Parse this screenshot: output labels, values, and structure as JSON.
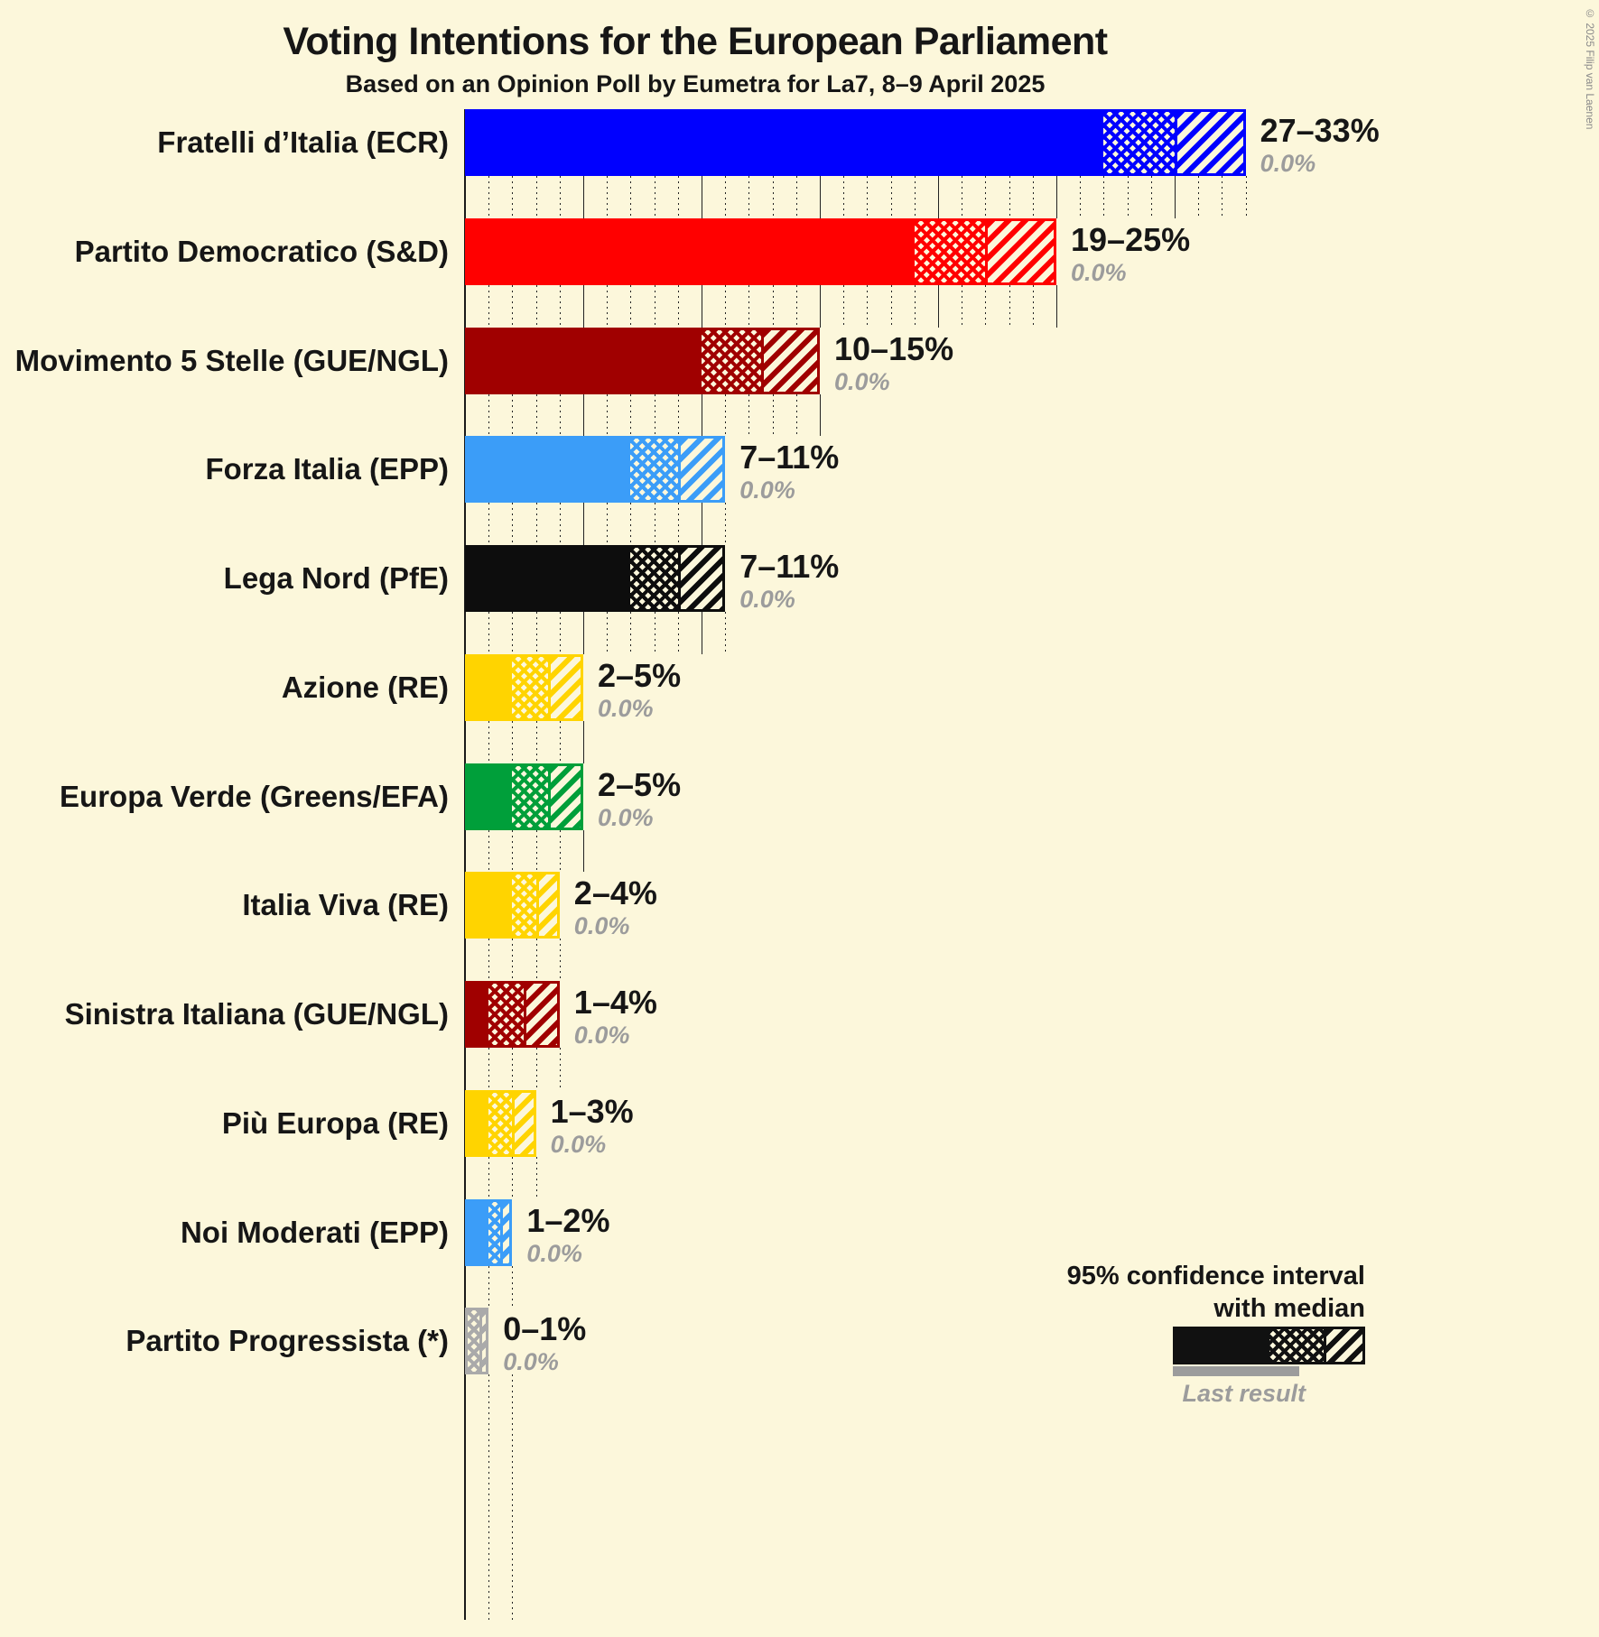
{
  "title": "Voting Intentions for the European Parliament",
  "subtitle": "Based on an Opinion Poll by Eumetra for La7, 8–9 April 2025",
  "copyright": "© 2025 Filip van Laenen",
  "legend": {
    "ci_line1": "95% confidence interval",
    "ci_line2": "with median",
    "last_result": "Last result"
  },
  "chart_data": {
    "type": "bar",
    "orientation": "horizontal",
    "unit": "%",
    "x_axis": {
      "min": 0,
      "max": 33,
      "minor_tick_step": 1,
      "major_tick_step": 5,
      "gridlines": "dotted-minor-solid-major"
    },
    "bars": [
      {
        "party": "Fratelli d’Italia (ECR)",
        "low": 27,
        "median": 30,
        "high": 33,
        "range_label": "27–33%",
        "last_result": "0.0%",
        "color": "#0000FF"
      },
      {
        "party": "Partito Democratico (S&D)",
        "low": 19,
        "median": 22,
        "high": 25,
        "range_label": "19–25%",
        "last_result": "0.0%",
        "color": "#FF0000"
      },
      {
        "party": "Movimento 5 Stelle (GUE/NGL)",
        "low": 10,
        "median": 12.5,
        "high": 15,
        "range_label": "10–15%",
        "last_result": "0.0%",
        "color": "#A00000"
      },
      {
        "party": "Forza Italia (EPP)",
        "low": 7,
        "median": 9,
        "high": 11,
        "range_label": "7–11%",
        "last_result": "0.0%",
        "color": "#3B9DF8"
      },
      {
        "party": "Lega Nord (PfE)",
        "low": 7,
        "median": 9,
        "high": 11,
        "range_label": "7–11%",
        "last_result": "0.0%",
        "color": "#0D0D0D"
      },
      {
        "party": "Azione (RE)",
        "low": 2,
        "median": 3.5,
        "high": 5,
        "range_label": "2–5%",
        "last_result": "0.0%",
        "color": "#FFD400"
      },
      {
        "party": "Europa Verde (Greens/EFA)",
        "low": 2,
        "median": 3.5,
        "high": 5,
        "range_label": "2–5%",
        "last_result": "0.0%",
        "color": "#009F3A"
      },
      {
        "party": "Italia Viva (RE)",
        "low": 2,
        "median": 3,
        "high": 4,
        "range_label": "2–4%",
        "last_result": "0.0%",
        "color": "#FFD400"
      },
      {
        "party": "Sinistra Italiana (GUE/NGL)",
        "low": 1,
        "median": 2.5,
        "high": 4,
        "range_label": "1–4%",
        "last_result": "0.0%",
        "color": "#A00000"
      },
      {
        "party": "Più Europa (RE)",
        "low": 1,
        "median": 2,
        "high": 3,
        "range_label": "1–3%",
        "last_result": "0.0%",
        "color": "#FFD400"
      },
      {
        "party": "Noi Moderati (EPP)",
        "low": 1,
        "median": 1.5,
        "high": 2,
        "range_label": "1–2%",
        "last_result": "0.0%",
        "color": "#3B9DF8"
      },
      {
        "party": "Partito Progressista (*)",
        "low": 0,
        "median": 0.5,
        "high": 1,
        "range_label": "0–1%",
        "last_result": "0.0%",
        "color": "#AAAAAA"
      }
    ]
  }
}
